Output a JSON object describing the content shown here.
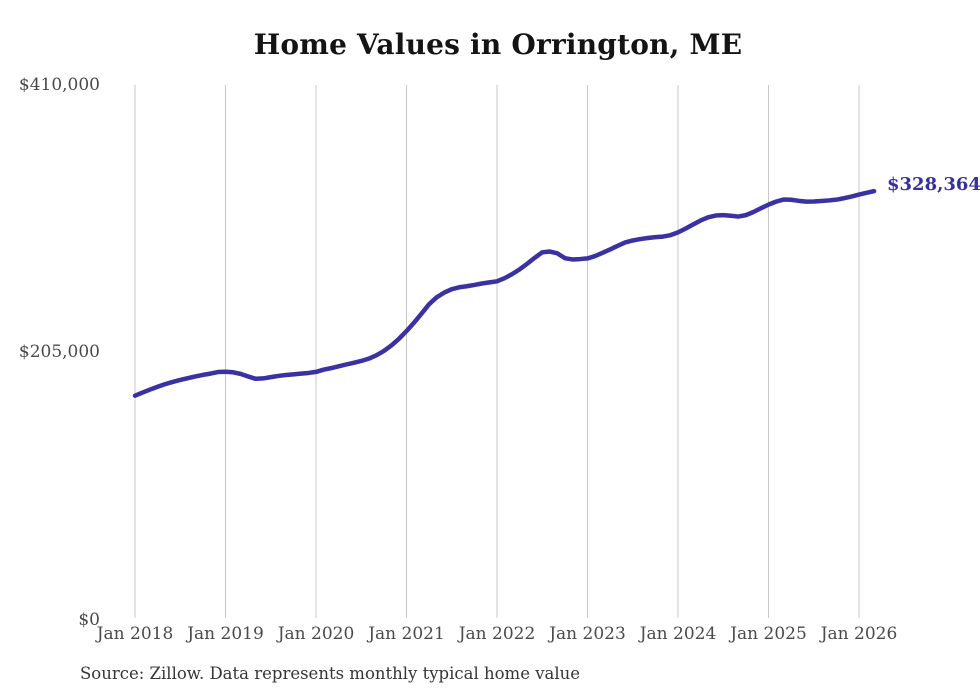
{
  "title": "Home Values in Orrington, ME",
  "source_note": "Source: Zillow. Data represents monthly typical home value",
  "end_label": "$328,364",
  "y_axis": {
    "top": "$410,000",
    "middle": "$205,000",
    "zero": "$0"
  },
  "colors": {
    "line": "#3a32a3",
    "end_label_text": "#3530a0",
    "grid": "#c9c9c9",
    "axis_text": "#4a4a4a",
    "title_text": "#141414",
    "background": "#ffffff"
  },
  "chart_data": {
    "type": "line",
    "title": "Home Values in Orrington, ME",
    "xlabel": "",
    "ylabel": "",
    "ylim": [
      0,
      410000
    ],
    "y_tick_labels": [
      "$0",
      "$205,000",
      "$410,000"
    ],
    "x_tick_labels": [
      "Jan 2018",
      "Jan 2019",
      "Jan 2020",
      "Jan 2021",
      "Jan 2022",
      "Jan 2023",
      "Jan 2024",
      "Jan 2025",
      "Jan 2026"
    ],
    "grid": "vertical-only",
    "legend": "none",
    "annotation": {
      "text": "$328,364",
      "attached_to": "last-point"
    },
    "series": [
      {
        "name": "Monthly typical home value",
        "start_month": "2018-01",
        "end_month": "2026-03",
        "interval": "monthly",
        "final_value": 328364,
        "values": [
          171000,
          173400,
          175700,
          177900,
          179900,
          181600,
          183100,
          184500,
          185800,
          187000,
          188000,
          189200,
          189400,
          189000,
          187800,
          185800,
          184000,
          184300,
          185300,
          186200,
          186900,
          187400,
          188000,
          188500,
          189300,
          191000,
          192200,
          193600,
          195000,
          196300,
          197700,
          199500,
          202100,
          205400,
          209700,
          214800,
          220700,
          227200,
          234200,
          241400,
          246700,
          250300,
          252900,
          254400,
          255200,
          256200,
          257300,
          258200,
          259000,
          261400,
          264500,
          268200,
          272500,
          277100,
          281300,
          281900,
          280500,
          276800,
          275800,
          276100,
          276600,
          278400,
          280900,
          283500,
          286300,
          288900,
          290400,
          291500,
          292300,
          293000,
          293400,
          294500,
          296600,
          299500,
          302700,
          305800,
          308200,
          309600,
          309900,
          309400,
          308800,
          309900,
          312300,
          315200,
          318000,
          320300,
          321900,
          321700,
          320900,
          320300,
          320400,
          320800,
          321200,
          321800,
          322900,
          324200,
          325700,
          327100,
          328364
        ]
      }
    ]
  }
}
